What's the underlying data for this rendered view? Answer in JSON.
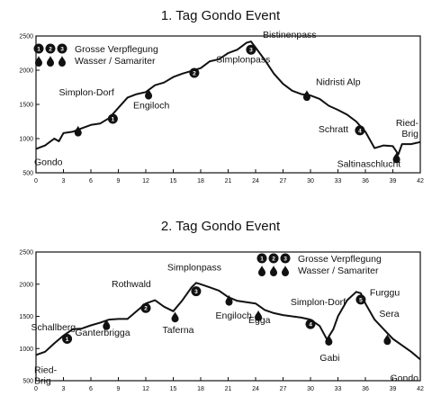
{
  "chart_data": [
    {
      "type": "line",
      "title": "1. Tag Gondo Event",
      "xlim": [
        0,
        42
      ],
      "ylim": [
        500,
        2500
      ],
      "x_ticks": [
        0,
        3,
        6,
        9,
        12,
        15,
        18,
        21,
        24,
        27,
        30,
        33,
        36,
        39,
        42
      ],
      "y_ticks": [
        500,
        1000,
        1500,
        2000,
        2500
      ],
      "legend": {
        "position": "top-left",
        "markers": [
          "1",
          "2",
          "3"
        ],
        "line1": "Grosse Verpflegung",
        "line2": "Wasser / Samariter"
      },
      "profile": {
        "x": [
          0,
          1,
          2,
          2.5,
          3,
          4,
          5,
          6,
          7,
          8,
          9,
          10,
          11,
          12,
          13,
          14,
          15,
          16,
          17,
          18,
          19,
          20,
          21,
          22,
          23,
          23.5,
          24,
          25,
          26,
          27,
          28,
          29,
          30,
          31,
          32,
          33,
          34,
          35,
          36,
          37,
          38,
          39,
          39.6,
          40,
          41,
          42
        ],
        "y": [
          850,
          900,
          1000,
          960,
          1080,
          1100,
          1150,
          1200,
          1220,
          1300,
          1450,
          1600,
          1650,
          1680,
          1780,
          1820,
          1900,
          1950,
          1990,
          2030,
          2130,
          2160,
          2250,
          2300,
          2400,
          2420,
          2330,
          2150,
          1950,
          1800,
          1700,
          1650,
          1630,
          1580,
          1480,
          1420,
          1350,
          1250,
          1100,
          860,
          900,
          890,
          770,
          920,
          920,
          950
        ]
      },
      "labels": [
        {
          "text": "Gondo",
          "x": 0,
          "y": 850
        },
        {
          "text": "Simplon-Dorf",
          "x": 9,
          "y": 1450
        },
        {
          "text": "Engiloch",
          "x": 12,
          "y": 1680
        },
        {
          "text": "Simplonpass",
          "x": 19.5,
          "y": 2030
        },
        {
          "text": "Bistinenpass",
          "x": 24,
          "y": 2420
        },
        {
          "text": "Nidristi Alp",
          "x": 30,
          "y": 1650
        },
        {
          "text": "Schratt",
          "x": 35,
          "y": 1250
        },
        {
          "text": "Saltinaschlucht",
          "x": 39.6,
          "y": 770
        },
        {
          "text": "Ried-",
          "x": 42,
          "y": 950
        },
        {
          "text": "Brig",
          "x": 42,
          "y": 950
        }
      ],
      "food_stations": [
        {
          "label": "1",
          "x": 8.4,
          "y": 1290
        },
        {
          "label": "2",
          "x": 17.3,
          "y": 1960
        },
        {
          "label": "3",
          "x": 23.5,
          "y": 2300
        },
        {
          "label": "4",
          "x": 35.4,
          "y": 1120
        }
      ],
      "water_stations": [
        {
          "x": 4.6,
          "y": 1110
        },
        {
          "x": 12.3,
          "y": 1650
        },
        {
          "x": 29.6,
          "y": 1630
        },
        {
          "x": 39.4,
          "y": 720
        }
      ]
    },
    {
      "type": "line",
      "title": "2. Tag Gondo Event",
      "xlim": [
        0,
        42
      ],
      "ylim": [
        500,
        2500
      ],
      "x_ticks": [
        0,
        3,
        6,
        9,
        12,
        15,
        18,
        21,
        24,
        27,
        30,
        33,
        36,
        39,
        42
      ],
      "y_ticks": [
        500,
        1000,
        1500,
        2000,
        2500
      ],
      "legend": {
        "position": "top-right",
        "markers": [
          "1",
          "2",
          "3"
        ],
        "line1": "Grosse Verpflegung",
        "line2": "Wasser / Samariter"
      },
      "profile": {
        "x": [
          0,
          1,
          2,
          3,
          4,
          5,
          6,
          7,
          8,
          9,
          10,
          11,
          12,
          13,
          14,
          15,
          16,
          17,
          17.5,
          18,
          19,
          20,
          21,
          22,
          23,
          24,
          25,
          26,
          27,
          28,
          29,
          30,
          31,
          31.8,
          32.5,
          33,
          34,
          35,
          35.5,
          36,
          37,
          38,
          39,
          40,
          41,
          42
        ],
        "y": [
          900,
          950,
          1080,
          1200,
          1300,
          1310,
          1360,
          1400,
          1450,
          1460,
          1460,
          1580,
          1700,
          1750,
          1650,
          1580,
          1750,
          1950,
          2020,
          2000,
          1950,
          1900,
          1800,
          1740,
          1720,
          1700,
          1600,
          1550,
          1520,
          1500,
          1480,
          1450,
          1350,
          1140,
          1300,
          1500,
          1750,
          1880,
          1860,
          1700,
          1450,
          1300,
          1150,
          1050,
          950,
          830
        ]
      },
      "labels": [
        {
          "text": "Ried-",
          "x": 0,
          "y": 900
        },
        {
          "text": "Brig",
          "x": 0,
          "y": 900
        },
        {
          "text": "Schallberg",
          "x": 3,
          "y": 1200
        },
        {
          "text": "Ganterbrigga",
          "x": 8,
          "y": 1450
        },
        {
          "text": "Rothwald",
          "x": 12,
          "y": 1700
        },
        {
          "text": "Taferna",
          "x": 15,
          "y": 1580
        },
        {
          "text": "Simplonpass",
          "x": 17.5,
          "y": 2020
        },
        {
          "text": "Engiloch",
          "x": 21,
          "y": 1800
        },
        {
          "text": "Egga",
          "x": 24,
          "y": 1700
        },
        {
          "text": "Simplon-Dorf",
          "x": 29,
          "y": 1480
        },
        {
          "text": "Gabi",
          "x": 31.8,
          "y": 1140
        },
        {
          "text": "Furggu",
          "x": 35.5,
          "y": 1880
        },
        {
          "text": "Sera",
          "x": 38.5,
          "y": 1300
        },
        {
          "text": "Gondo",
          "x": 42,
          "y": 830
        }
      ],
      "food_stations": [
        {
          "label": "1",
          "x": 3.4,
          "y": 1150
        },
        {
          "label": "2",
          "x": 12,
          "y": 1630
        },
        {
          "label": "3",
          "x": 17.5,
          "y": 1890
        },
        {
          "label": "4",
          "x": 30,
          "y": 1380
        },
        {
          "label": "5",
          "x": 35.5,
          "y": 1760
        }
      ],
      "water_stations": [
        {
          "x": 7.7,
          "y": 1370
        },
        {
          "x": 15.2,
          "y": 1490
        },
        {
          "x": 21.1,
          "y": 1750
        },
        {
          "x": 24.3,
          "y": 1510
        },
        {
          "x": 32,
          "y": 1130
        },
        {
          "x": 38.4,
          "y": 1140
        }
      ]
    }
  ]
}
